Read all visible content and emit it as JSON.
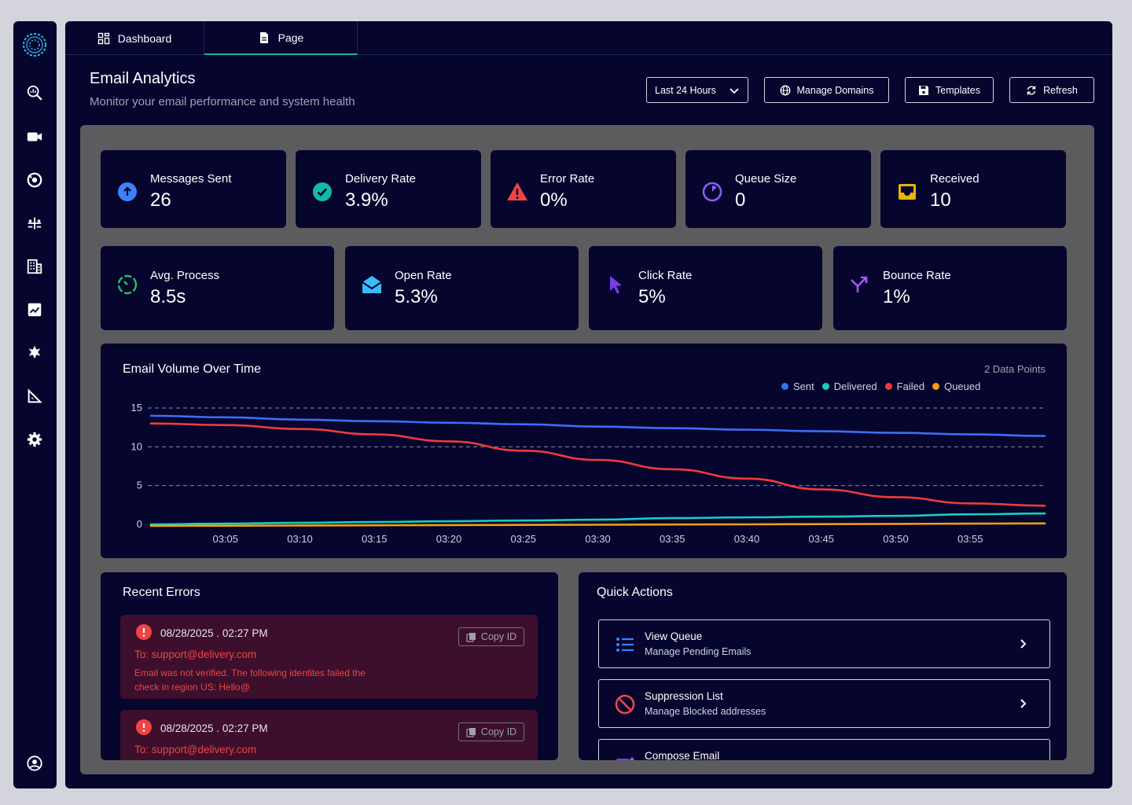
{
  "tabs": [
    {
      "label": "Dashboard",
      "icon": "dashboard-grid-icon"
    },
    {
      "label": "Page",
      "icon": "document-icon"
    }
  ],
  "header": {
    "title": "Email Analytics",
    "subtitle": "Monitor your email performance and system health",
    "range_select": "Last 24 Hours",
    "manage_domains": "Manage Domains",
    "templates": "Templates",
    "refresh": "Refresh"
  },
  "stats_row1": [
    {
      "label": "Messages Sent",
      "value": "26",
      "icon": "arrow-up-circle-icon",
      "color": "#3b82f6"
    },
    {
      "label": "Delivery Rate",
      "value": "3.9%",
      "icon": "check-circle-icon",
      "color": "#14b8a6"
    },
    {
      "label": "Error Rate",
      "value": "0%",
      "icon": "warning-triangle-icon",
      "color": "#ef4444"
    },
    {
      "label": "Queue Size",
      "value": "0",
      "icon": "pie-progress-icon",
      "color": "#8b5cf6"
    },
    {
      "label": "Received",
      "value": "10",
      "icon": "inbox-tray-icon",
      "color": "#eab308"
    }
  ],
  "stats_row2": [
    {
      "label": "Avg. Process",
      "value": "8.5s",
      "icon": "timer-icon",
      "color": "#22c55e"
    },
    {
      "label": "Open Rate",
      "value": "5.3%",
      "icon": "open-envelope-icon",
      "color": "#38bdf8"
    },
    {
      "label": "Click Rate",
      "value": "5%",
      "icon": "cursor-pointer-icon",
      "color": "#7c3aed"
    },
    {
      "label": "Bounce Rate",
      "value": "1%",
      "icon": "bounce-arrow-icon",
      "color": "#a855f7"
    }
  ],
  "chart": {
    "title": "Email Volume Over Time",
    "points_label": "2 Data Points",
    "legend": [
      {
        "name": "Sent",
        "color": "#3b6ef5"
      },
      {
        "name": "Delivered",
        "color": "#14d0c0"
      },
      {
        "name": "Failed",
        "color": "#f03a3a"
      },
      {
        "name": "Queued",
        "color": "#f59e0b"
      }
    ]
  },
  "chart_data": {
    "type": "line",
    "title": "Email Volume Over Time",
    "x": [
      "03:00",
      "03:05",
      "03:10",
      "03:15",
      "03:20",
      "03:25",
      "03:30",
      "03:35",
      "03:40",
      "03:45",
      "03:50",
      "03:55",
      "04:00"
    ],
    "x_ticks": [
      "03:05",
      "03:10",
      "03:15",
      "03:20",
      "03:25",
      "03:30",
      "03:35",
      "03:40",
      "03:45",
      "03:50",
      "03:55"
    ],
    "y_ticks": [
      0,
      5,
      10,
      15
    ],
    "ylim": [
      0,
      15
    ],
    "series": [
      {
        "name": "Sent",
        "values": [
          14.0,
          13.8,
          13.5,
          13.3,
          13.1,
          12.9,
          12.6,
          12.4,
          12.2,
          12.0,
          11.8,
          11.6,
          11.4
        ]
      },
      {
        "name": "Delivered",
        "values": [
          0.0,
          0.1,
          0.2,
          0.3,
          0.4,
          0.5,
          0.6,
          0.8,
          0.9,
          1.0,
          1.1,
          1.3,
          1.4
        ]
      },
      {
        "name": "Failed",
        "values": [
          13.0,
          12.8,
          12.3,
          11.6,
          10.7,
          9.5,
          8.3,
          7.1,
          5.9,
          4.5,
          3.5,
          2.7,
          2.4
        ]
      },
      {
        "name": "Queued",
        "values": [
          -0.2,
          -0.18,
          -0.15,
          -0.12,
          -0.1,
          -0.07,
          -0.05,
          -0.02,
          0.0,
          0.03,
          0.06,
          0.09,
          0.12
        ]
      }
    ]
  },
  "errors": {
    "title": "Recent Errors",
    "copy_label": "Copy ID",
    "items": [
      {
        "time": "08/28/2025 . 02:27 PM",
        "to": "To: support@delivery.com",
        "message": "Email was not verified. The following identites failed the check in region US: Hello@"
      },
      {
        "time": "08/28/2025 . 02:27 PM",
        "to": "To: support@delivery.com",
        "message": ""
      }
    ]
  },
  "quick_actions": {
    "title": "Quick Actions",
    "items": [
      {
        "label": "View Queue",
        "desc": "Manage Pending Emails",
        "icon": "list-icon"
      },
      {
        "label": "Suppression List",
        "desc": "Manage Blocked addresses",
        "icon": "block-icon"
      },
      {
        "label": "Compose Email",
        "desc": "",
        "icon": "compose-icon"
      }
    ]
  }
}
